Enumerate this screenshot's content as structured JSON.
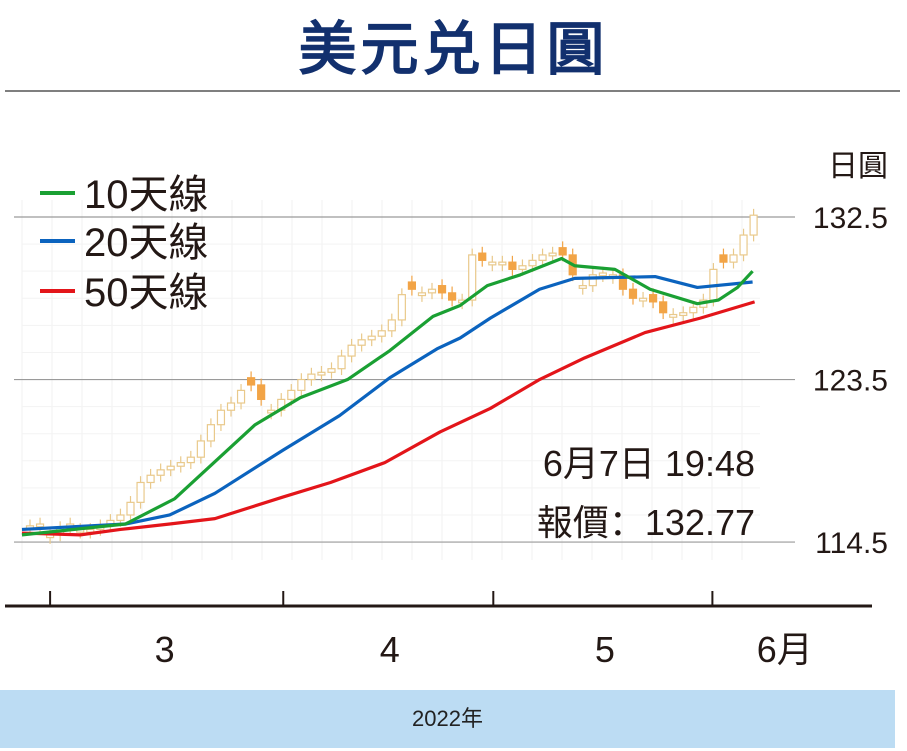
{
  "title": "美元兑日圓",
  "footer": "2022年",
  "annotation": {
    "time": "6月7日 19:48",
    "quote": "報價：132.77"
  },
  "colors": {
    "ma10": "#1aa033",
    "ma20": "#0b63be",
    "ma50": "#e3151a",
    "candle_down": "#f2a446",
    "candle_up": "#e9c98b",
    "title": "#12306e"
  },
  "chart_data": {
    "type": "candlestick-line",
    "title": "美元兑日圓",
    "ylabel": "日圓",
    "xlabel": "2022年",
    "ylim": [
      112.5,
      134.5
    ],
    "yticks": [
      132.5,
      123.5,
      114.5
    ],
    "ytick_labels": [
      "132.5",
      "123.5",
      "114.5"
    ],
    "month_ticks": [
      2.0,
      25.2,
      46.1,
      67.9
    ],
    "xtick_labels": [
      {
        "label": "3",
        "at": 13.4
      },
      {
        "label": "4",
        "at": 35.8
      },
      {
        "label": "5",
        "at": 57.2
      },
      {
        "label": "6月",
        "at": 75.1
      }
    ],
    "legend": [
      "10天線",
      "20天線",
      "50天線"
    ],
    "legend_position": "top-left",
    "closes": [
      115.4,
      115.5,
      114.9,
      115.3,
      115.5,
      115.2,
      115.2,
      115.4,
      115.7,
      116.0,
      116.7,
      117.8,
      118.2,
      118.5,
      118.7,
      118.9,
      119.2,
      120.1,
      121.0,
      121.8,
      122.2,
      122.9,
      123.2,
      122.4,
      121.8,
      122.4,
      122.9,
      123.5,
      123.8,
      123.9,
      124.1,
      124.8,
      125.4,
      125.7,
      125.9,
      126.2,
      126.8,
      128.2,
      128.5,
      128.3,
      128.5,
      128.3,
      127.9,
      127.9,
      130.4,
      130.1,
      130.0,
      130.0,
      129.6,
      129.8,
      130.1,
      130.4,
      130.5,
      130.4,
      129.3,
      128.7,
      129.3,
      129.4,
      129.3,
      128.5,
      128.0,
      128.0,
      127.8,
      127.2,
      127.1,
      127.2,
      127.5,
      127.9,
      129.6,
      130.0,
      130.4,
      131.5,
      132.6
    ],
    "down_days": [
      22,
      23,
      38,
      41,
      42,
      45,
      48,
      53,
      54,
      59,
      60,
      62,
      63,
      69
    ],
    "series": [
      {
        "name": "10天線",
        "points": [
          [
            -0.8,
            114.9
          ],
          [
            9.5,
            115.5
          ],
          [
            14.4,
            116.9
          ],
          [
            22.4,
            121.0
          ],
          [
            26.9,
            122.5
          ],
          [
            31.6,
            123.5
          ],
          [
            35.8,
            125.1
          ],
          [
            40.1,
            127.0
          ],
          [
            42.8,
            127.6
          ],
          [
            45.5,
            128.7
          ],
          [
            48.8,
            129.3
          ],
          [
            52.9,
            130.2
          ],
          [
            54.2,
            129.8
          ],
          [
            58.2,
            129.6
          ],
          [
            61.7,
            128.5
          ],
          [
            66.4,
            127.7
          ],
          [
            68.5,
            127.9
          ],
          [
            70.4,
            128.6
          ],
          [
            71.9,
            129.5
          ]
        ]
      },
      {
        "name": "20天線",
        "points": [
          [
            -0.8,
            115.2
          ],
          [
            9.5,
            115.5
          ],
          [
            13.9,
            116.0
          ],
          [
            18.4,
            117.2
          ],
          [
            25.2,
            119.6
          ],
          [
            30.8,
            121.5
          ],
          [
            35.8,
            123.6
          ],
          [
            40.5,
            125.2
          ],
          [
            42.8,
            125.8
          ],
          [
            45.8,
            126.9
          ],
          [
            50.7,
            128.5
          ],
          [
            54.2,
            129.1
          ],
          [
            62.2,
            129.2
          ],
          [
            66.4,
            128.6
          ],
          [
            71.9,
            128.9
          ]
        ]
      },
      {
        "name": "50天線",
        "points": [
          [
            -0.8,
            115.0
          ],
          [
            5,
            114.9
          ],
          [
            9,
            115.2
          ],
          [
            13.9,
            115.5
          ],
          [
            18.4,
            115.8
          ],
          [
            25.2,
            117.0
          ],
          [
            29.9,
            117.8
          ],
          [
            35.3,
            118.9
          ],
          [
            40.8,
            120.6
          ],
          [
            45.8,
            121.9
          ],
          [
            50.7,
            123.5
          ],
          [
            55.2,
            124.7
          ],
          [
            61.2,
            126.1
          ],
          [
            66.7,
            126.9
          ],
          [
            72.1,
            127.8
          ]
        ]
      }
    ]
  }
}
